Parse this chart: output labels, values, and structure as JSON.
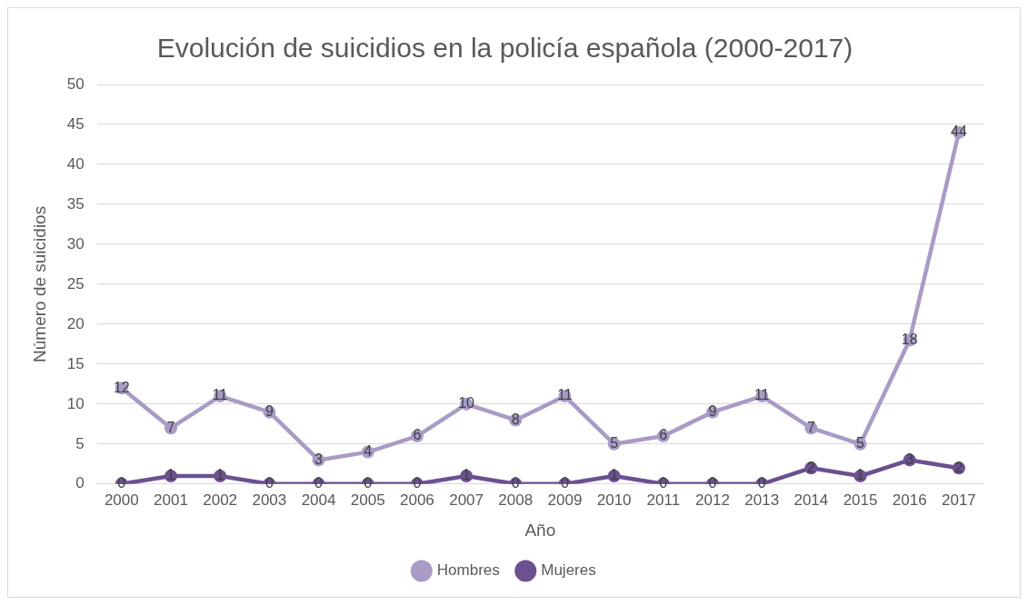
{
  "chart_data": {
    "type": "line",
    "title": "Evolución de suicidios en la policía española (2000-2017)",
    "xlabel": "Año",
    "ylabel": "Número de suicidios",
    "categories": [
      "2000",
      "2001",
      "2002",
      "2003",
      "2004",
      "2005",
      "2006",
      "2007",
      "2008",
      "2009",
      "2010",
      "2011",
      "2012",
      "2013",
      "2014",
      "2015",
      "2016",
      "2017"
    ],
    "series": [
      {
        "name": "Hombres",
        "color": "#a99bc6",
        "values": [
          12,
          7,
          11,
          9,
          3,
          4,
          6,
          10,
          8,
          11,
          5,
          6,
          9,
          11,
          7,
          5,
          18,
          44
        ]
      },
      {
        "name": "Mujeres",
        "color": "#6b5190",
        "values": [
          0,
          1,
          1,
          0,
          0,
          0,
          0,
          1,
          0,
          0,
          1,
          0,
          0,
          0,
          2,
          1,
          3,
          2
        ]
      }
    ],
    "ylim": [
      0,
      50
    ],
    "yticks": [
      0,
      5,
      10,
      15,
      20,
      25,
      30,
      35,
      40,
      45,
      50
    ],
    "grid": "y",
    "legend": "bottom",
    "marker": "circle",
    "line_style": "solid",
    "data_labels": true
  }
}
